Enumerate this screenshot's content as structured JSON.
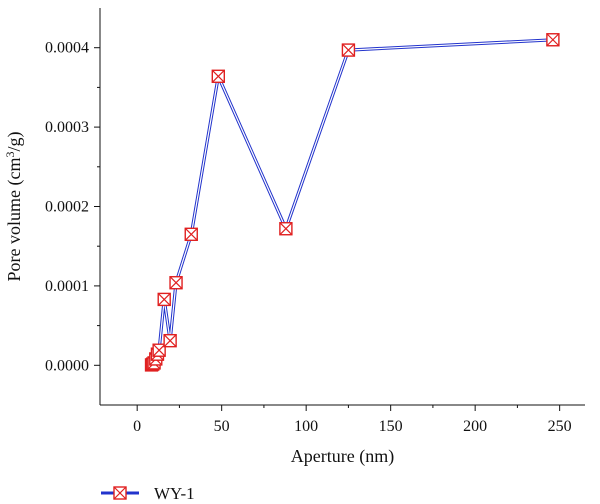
{
  "chart_data": {
    "type": "line",
    "xlabel": "Aperture (nm)",
    "ylabel_prefix": "Pore volume (cm",
    "ylabel_sup": "3",
    "ylabel_suffix": "/g)",
    "xlim": [
      -22,
      265
    ],
    "ylim": [
      -5e-05,
      0.00045
    ],
    "xticks": [
      0,
      50,
      100,
      150,
      200,
      250
    ],
    "yticks": [
      0.0,
      0.0001,
      0.0002,
      0.0003,
      0.0004
    ],
    "ytick_labels": [
      "0.0000",
      "0.0001",
      "0.0002",
      "0.0003",
      "0.0004"
    ],
    "series": [
      {
        "name": "WY-1",
        "line_color": "#2233cc",
        "marker_color": "#e02020",
        "marker": "square-x",
        "x": [
          8.5,
          9.2,
          10,
          11,
          12,
          13,
          16,
          19.5,
          23,
          32,
          48,
          88,
          125,
          246
        ],
        "y": [
          5e-07,
          1.5e-06,
          3e-06,
          8e-06,
          1.4e-05,
          1.9e-05,
          8.3e-05,
          3.1e-05,
          0.000104,
          0.000165,
          0.000364,
          0.000172,
          0.000397,
          0.00041
        ]
      }
    ],
    "grid": false,
    "legend": "bottom-left"
  }
}
